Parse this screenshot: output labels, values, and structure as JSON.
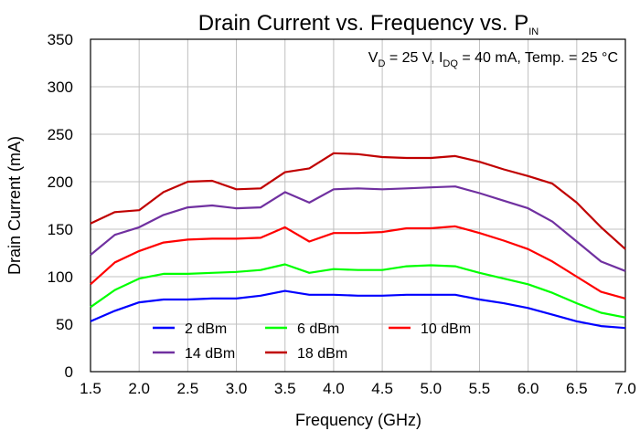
{
  "chart_data": {
    "type": "line",
    "title": {
      "main": "Drain Current vs. Frequency vs. P",
      "sub": "IN"
    },
    "xlabel": "Frequency (GHz)",
    "ylabel": "Drain Current (mA)",
    "annotation": {
      "v_main": "V",
      "v_sub": "D",
      "v_rest": " = 25 V, I",
      "i_sub": "DQ",
      "i_rest": " = 40 mA, Temp. = 25 °C"
    },
    "xlim": [
      1.5,
      7.0
    ],
    "ylim": [
      0,
      350
    ],
    "grid": true,
    "legend_position": "bottom-left",
    "x_ticks": [
      "1.5",
      "2.0",
      "2.5",
      "3.0",
      "3.5",
      "4.0",
      "4.5",
      "5.0",
      "5.5",
      "6.0",
      "6.5",
      "7.0"
    ],
    "y_ticks": [
      "0",
      "50",
      "100",
      "150",
      "200",
      "250",
      "300",
      "350"
    ],
    "x": [
      1.5,
      1.75,
      2.0,
      2.25,
      2.5,
      2.75,
      3.0,
      3.25,
      3.5,
      3.75,
      4.0,
      4.25,
      4.5,
      4.75,
      5.0,
      5.25,
      5.5,
      5.75,
      6.0,
      6.25,
      6.5,
      6.75,
      7.0
    ],
    "series": [
      {
        "name": "2 dBm",
        "color": "#0000ff",
        "values": [
          53,
          64,
          73,
          76,
          76,
          77,
          77,
          80,
          85,
          81,
          81,
          80,
          80,
          81,
          81,
          81,
          76,
          72,
          67,
          60,
          53,
          48,
          46
        ]
      },
      {
        "name": "6 dBm",
        "color": "#00ff00",
        "values": [
          68,
          86,
          98,
          103,
          103,
          104,
          105,
          107,
          113,
          104,
          108,
          107,
          107,
          111,
          112,
          111,
          104,
          98,
          92,
          83,
          72,
          62,
          57
        ]
      },
      {
        "name": "10 dBm",
        "color": "#ff0000",
        "values": [
          92,
          115,
          127,
          136,
          139,
          140,
          140,
          141,
          152,
          137,
          146,
          146,
          147,
          151,
          151,
          153,
          146,
          138,
          129,
          116,
          100,
          84,
          77
        ]
      },
      {
        "name": "14 dBm",
        "color": "#7030a0",
        "values": [
          123,
          144,
          152,
          165,
          173,
          175,
          172,
          173,
          189,
          178,
          192,
          193,
          192,
          193,
          194,
          195,
          188,
          180,
          172,
          158,
          137,
          116,
          106
        ]
      },
      {
        "name": "18 dBm",
        "color": "#c00000",
        "values": [
          156,
          168,
          170,
          189,
          200,
          201,
          192,
          193,
          210,
          214,
          230,
          229,
          226,
          225,
          225,
          227,
          221,
          213,
          206,
          198,
          178,
          152,
          129
        ]
      }
    ]
  }
}
